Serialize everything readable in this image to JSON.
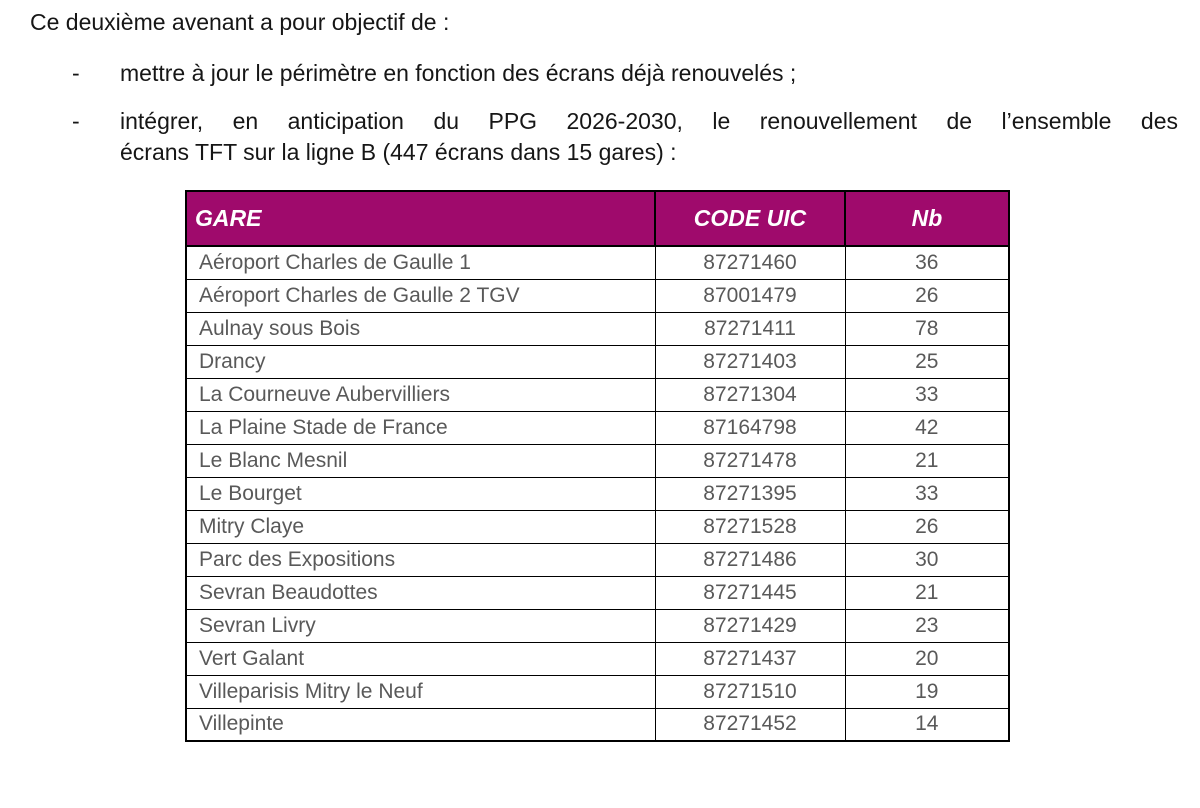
{
  "page": {
    "intro": "Ce deuxième avenant a pour objectif de :"
  },
  "bullets": [
    {
      "marker": "-",
      "text": "mettre à jour le périmètre en fonction des écrans déjà renouvelés ;"
    },
    {
      "marker": "-",
      "line1": "intégrer, en anticipation du PPG 2026-2030, le renouvellement de l’ensemble des",
      "line2": "écrans TFT sur la ligne B (447 écrans dans 15 gares) :"
    }
  ],
  "table": {
    "headers": {
      "gare": "GARE",
      "code_uic": "CODE UIC",
      "nb": "Nb"
    },
    "rows": [
      {
        "gare": "Aéroport Charles de Gaulle 1",
        "code": "87271460",
        "nb": "36"
      },
      {
        "gare": "Aéroport Charles de Gaulle 2 TGV",
        "code": "87001479",
        "nb": "26"
      },
      {
        "gare": "Aulnay sous Bois",
        "code": "87271411",
        "nb": "78"
      },
      {
        "gare": "Drancy",
        "code": "87271403",
        "nb": "25"
      },
      {
        "gare": "La Courneuve Aubervilliers",
        "code": "87271304",
        "nb": "33"
      },
      {
        "gare": "La Plaine Stade de France",
        "code": "87164798",
        "nb": "42"
      },
      {
        "gare": "Le Blanc Mesnil",
        "code": "87271478",
        "nb": "21"
      },
      {
        "gare": "Le Bourget",
        "code": "87271395",
        "nb": "33"
      },
      {
        "gare": "Mitry Claye",
        "code": "87271528",
        "nb": "26"
      },
      {
        "gare": "Parc des Expositions",
        "code": "87271486",
        "nb": "30"
      },
      {
        "gare": "Sevran Beaudottes",
        "code": "87271445",
        "nb": "21"
      },
      {
        "gare": "Sevran Livry",
        "code": "87271429",
        "nb": "23"
      },
      {
        "gare": "Vert Galant",
        "code": "87271437",
        "nb": "20"
      },
      {
        "gare": "Villeparisis Mitry le Neuf",
        "code": "87271510",
        "nb": "19"
      },
      {
        "gare": "Villepinte",
        "code": "87271452",
        "nb": "14"
      }
    ]
  },
  "colors": {
    "header_bg": "#9F0A6C",
    "header_text": "#FFFFFF",
    "cell_text": "#595959",
    "body_text": "#161616",
    "border": "#000000"
  }
}
